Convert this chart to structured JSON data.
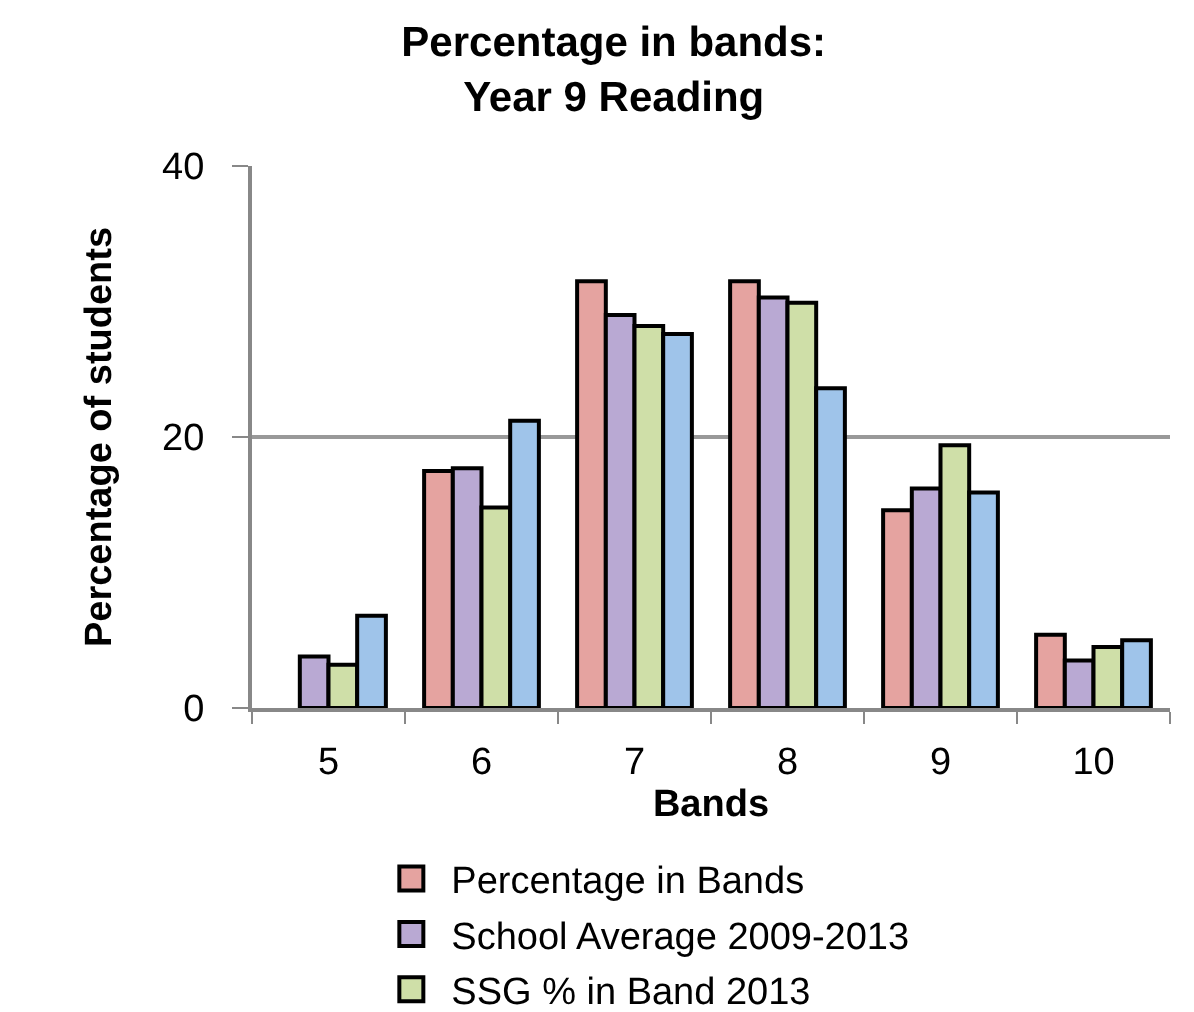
{
  "chart_data": {
    "type": "bar",
    "title": "Percentage in bands:\nYear 9 Reading",
    "xlabel": "Bands",
    "ylabel": "Percentage of students",
    "categories": [
      "5",
      "6",
      "7",
      "8",
      "9",
      "10"
    ],
    "series": [
      {
        "name": "Percentage in Bands",
        "color": "#e5a3a0",
        "values": [
          null,
          17.5,
          31.5,
          31.5,
          14.6,
          5.4
        ]
      },
      {
        "name": "School Average 2009-2013",
        "color": "#b9a9d3",
        "values": [
          3.8,
          17.7,
          29.0,
          30.3,
          16.2,
          3.5
        ]
      },
      {
        "name": "SSG % in Band 2013",
        "color": "#cfdfa8",
        "values": [
          3.2,
          14.8,
          28.2,
          29.9,
          19.4,
          4.5
        ]
      },
      {
        "color": "#9fc4ea",
        "values": [
          6.8,
          21.2,
          27.6,
          23.6,
          15.9,
          5.0
        ]
      }
    ],
    "ylim": [
      0,
      40
    ],
    "yticks": [
      0,
      20,
      40
    ],
    "grid": "y",
    "legend": "bottom"
  }
}
